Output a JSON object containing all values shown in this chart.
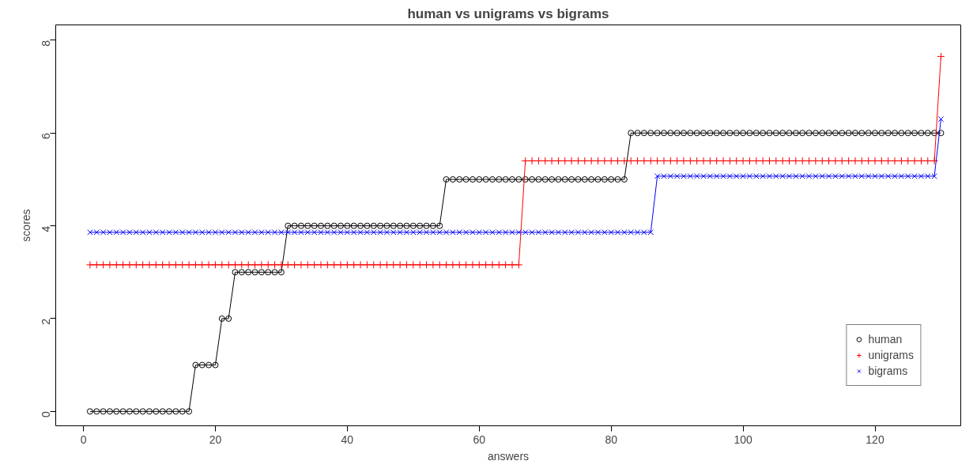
{
  "chart_data": {
    "type": "line",
    "title": "human vs unigrams vs bigrams",
    "xlabel": "answers",
    "ylabel": "scores",
    "x": [
      1,
      2,
      3,
      4,
      5,
      6,
      7,
      8,
      9,
      10,
      11,
      12,
      13,
      14,
      15,
      16,
      17,
      18,
      19,
      20,
      21,
      22,
      23,
      24,
      25,
      26,
      27,
      28,
      29,
      30,
      31,
      32,
      33,
      34,
      35,
      36,
      37,
      38,
      39,
      40,
      41,
      42,
      43,
      44,
      45,
      46,
      47,
      48,
      49,
      50,
      51,
      52,
      53,
      54,
      55,
      56,
      57,
      58,
      59,
      60,
      61,
      62,
      63,
      64,
      65,
      66,
      67,
      68,
      69,
      70,
      71,
      72,
      73,
      74,
      75,
      76,
      77,
      78,
      79,
      80,
      81,
      82,
      83,
      84,
      85,
      86,
      87,
      88,
      89,
      90,
      91,
      92,
      93,
      94,
      95,
      96,
      97,
      98,
      99,
      100,
      101,
      102,
      103,
      104,
      105,
      106,
      107,
      108,
      109,
      110,
      111,
      112,
      113,
      114,
      115,
      116,
      117,
      118,
      119,
      120,
      121,
      122,
      123,
      124,
      125,
      126,
      127,
      128,
      129,
      130
    ],
    "series": [
      {
        "name": "human",
        "color": "#000000",
        "marker": "circle",
        "values": [
          0,
          0,
          0,
          0,
          0,
          0,
          0,
          0,
          0,
          0,
          0,
          0,
          0,
          0,
          0,
          0,
          1,
          1,
          1,
          1,
          2,
          2,
          3,
          3,
          3,
          3,
          3,
          3,
          3,
          3,
          4,
          4,
          4,
          4,
          4,
          4,
          4,
          4,
          4,
          4,
          4,
          4,
          4,
          4,
          4,
          4,
          4,
          4,
          4,
          4,
          4,
          4,
          4,
          4,
          5,
          5,
          5,
          5,
          5,
          5,
          5,
          5,
          5,
          5,
          5,
          5,
          5,
          5,
          5,
          5,
          5,
          5,
          5,
          5,
          5,
          5,
          5,
          5,
          5,
          5,
          5,
          5,
          6,
          6,
          6,
          6,
          6,
          6,
          6,
          6,
          6,
          6,
          6,
          6,
          6,
          6,
          6,
          6,
          6,
          6,
          6,
          6,
          6,
          6,
          6,
          6,
          6,
          6,
          6,
          6,
          6,
          6,
          6,
          6,
          6,
          6,
          6,
          6,
          6,
          6,
          6,
          6,
          6,
          6,
          6,
          6,
          6,
          6,
          6,
          6
        ]
      },
      {
        "name": "unigrams",
        "color": "#ff0000",
        "marker": "cross",
        "values": [
          3.16,
          3.16,
          3.16,
          3.16,
          3.16,
          3.16,
          3.16,
          3.16,
          3.16,
          3.16,
          3.16,
          3.16,
          3.16,
          3.16,
          3.16,
          3.16,
          3.16,
          3.16,
          3.16,
          3.16,
          3.16,
          3.16,
          3.16,
          3.16,
          3.16,
          3.16,
          3.16,
          3.16,
          3.16,
          3.16,
          3.16,
          3.16,
          3.16,
          3.16,
          3.16,
          3.16,
          3.16,
          3.16,
          3.16,
          3.16,
          3.16,
          3.16,
          3.16,
          3.16,
          3.16,
          3.16,
          3.16,
          3.16,
          3.16,
          3.16,
          3.16,
          3.16,
          3.16,
          3.16,
          3.16,
          3.16,
          3.16,
          3.16,
          3.16,
          3.16,
          3.16,
          3.16,
          3.16,
          3.16,
          3.16,
          3.16,
          5.4,
          5.4,
          5.4,
          5.4,
          5.4,
          5.4,
          5.4,
          5.4,
          5.4,
          5.4,
          5.4,
          5.4,
          5.4,
          5.4,
          5.4,
          5.4,
          5.4,
          5.4,
          5.4,
          5.4,
          5.4,
          5.4,
          5.4,
          5.4,
          5.4,
          5.4,
          5.4,
          5.4,
          5.4,
          5.4,
          5.4,
          5.4,
          5.4,
          5.4,
          5.4,
          5.4,
          5.4,
          5.4,
          5.4,
          5.4,
          5.4,
          5.4,
          5.4,
          5.4,
          5.4,
          5.4,
          5.4,
          5.4,
          5.4,
          5.4,
          5.4,
          5.4,
          5.4,
          5.4,
          5.4,
          5.4,
          5.4,
          5.4,
          5.4,
          5.4,
          5.4,
          5.4,
          5.4,
          7.65
        ]
      },
      {
        "name": "bigrams",
        "color": "#0000ff",
        "marker": "x",
        "values": [
          3.86,
          3.86,
          3.86,
          3.86,
          3.86,
          3.86,
          3.86,
          3.86,
          3.86,
          3.86,
          3.86,
          3.86,
          3.86,
          3.86,
          3.86,
          3.86,
          3.86,
          3.86,
          3.86,
          3.86,
          3.86,
          3.86,
          3.86,
          3.86,
          3.86,
          3.86,
          3.86,
          3.86,
          3.86,
          3.86,
          3.86,
          3.86,
          3.86,
          3.86,
          3.86,
          3.86,
          3.86,
          3.86,
          3.86,
          3.86,
          3.86,
          3.86,
          3.86,
          3.86,
          3.86,
          3.86,
          3.86,
          3.86,
          3.86,
          3.86,
          3.86,
          3.86,
          3.86,
          3.86,
          3.86,
          3.86,
          3.86,
          3.86,
          3.86,
          3.86,
          3.86,
          3.86,
          3.86,
          3.86,
          3.86,
          3.86,
          3.86,
          3.86,
          3.86,
          3.86,
          3.86,
          3.86,
          3.86,
          3.86,
          3.86,
          3.86,
          3.86,
          3.86,
          3.86,
          3.86,
          3.86,
          3.86,
          3.86,
          3.86,
          3.86,
          3.86,
          5.07,
          5.07,
          5.07,
          5.07,
          5.07,
          5.07,
          5.07,
          5.07,
          5.07,
          5.07,
          5.07,
          5.07,
          5.07,
          5.07,
          5.07,
          5.07,
          5.07,
          5.07,
          5.07,
          5.07,
          5.07,
          5.07,
          5.07,
          5.07,
          5.07,
          5.07,
          5.07,
          5.07,
          5.07,
          5.07,
          5.07,
          5.07,
          5.07,
          5.07,
          5.07,
          5.07,
          5.07,
          5.07,
          5.07,
          5.07,
          5.07,
          5.07,
          5.07,
          6.3
        ]
      }
    ],
    "xlim": [
      -4.2,
      133
    ],
    "ylim": [
      -0.31,
      8.33
    ],
    "xticks": [
      0,
      20,
      40,
      60,
      80,
      100,
      120
    ],
    "yticks": [
      0,
      2,
      4,
      6,
      8
    ],
    "grid": false,
    "legend": "bottom right",
    "line_style": "solid"
  }
}
